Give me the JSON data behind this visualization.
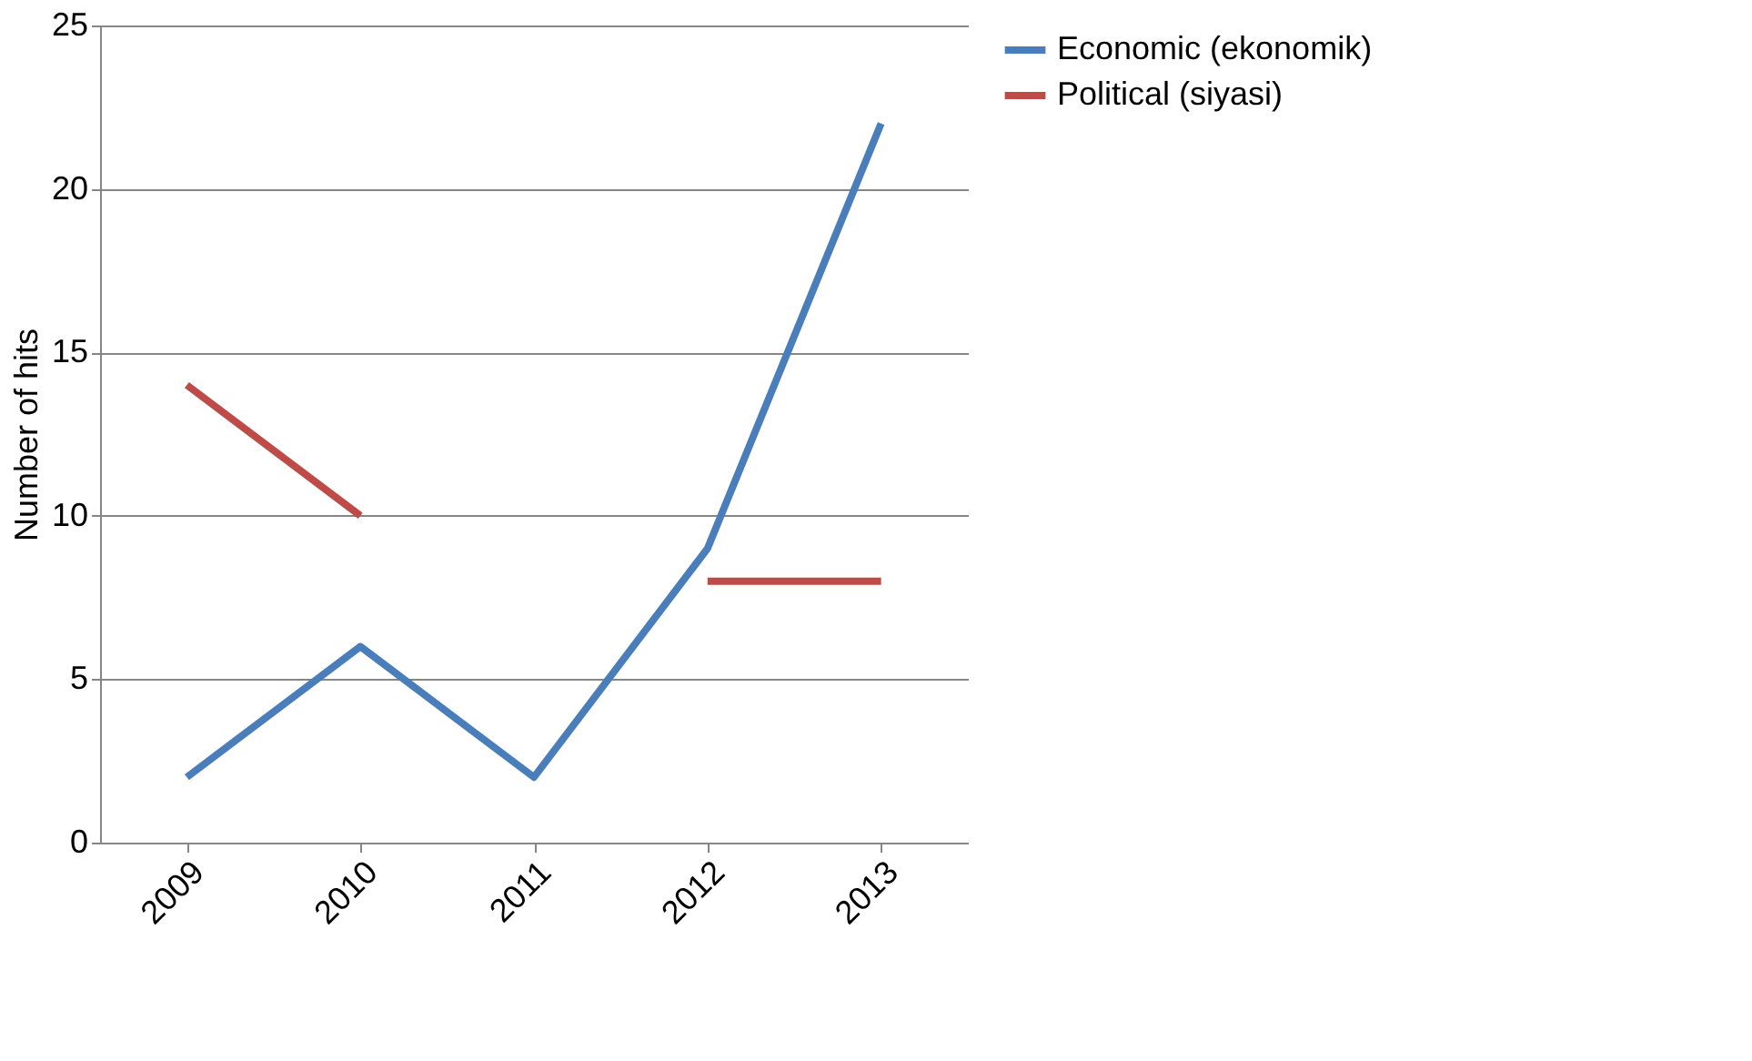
{
  "chart_data": {
    "type": "line",
    "ylabel": "Number of hits",
    "categories": [
      "2009",
      "2010",
      "2011",
      "2012",
      "2013"
    ],
    "series": [
      {
        "name": "Economic (ekonomik)",
        "color": "#4a7ebb",
        "values": [
          2,
          6,
          2,
          9,
          22
        ]
      },
      {
        "name": "Political (siyasi)",
        "color": "#be4b48",
        "values": [
          14,
          10,
          null,
          8,
          8
        ]
      }
    ],
    "ylim": [
      0,
      25
    ],
    "yticks": [
      0,
      5,
      10,
      15,
      20,
      25
    ],
    "grid": "y",
    "legend": "right",
    "marker": "none",
    "line_style": "solid"
  }
}
